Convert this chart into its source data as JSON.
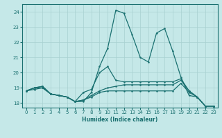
{
  "xlabel": "Humidex (Indice chaleur)",
  "xlim": [
    -0.5,
    23.5
  ],
  "ylim": [
    17.7,
    24.5
  ],
  "yticks": [
    18,
    19,
    20,
    21,
    22,
    23,
    24
  ],
  "xticks": [
    0,
    1,
    2,
    3,
    4,
    5,
    6,
    7,
    8,
    9,
    10,
    11,
    12,
    13,
    14,
    15,
    16,
    17,
    18,
    19,
    20,
    21,
    22,
    23
  ],
  "bg_color": "#c5e8e8",
  "line_color": "#1a7070",
  "grid_color": "#a8d0d0",
  "lines": [
    {
      "x": [
        0,
        1,
        2,
        3,
        4,
        5,
        6,
        7,
        8,
        9,
        10,
        11,
        12,
        13,
        14,
        15,
        16,
        17,
        18,
        19,
        20,
        21,
        22,
        23
      ],
      "y": [
        18.8,
        19.0,
        19.1,
        18.6,
        18.5,
        18.4,
        18.1,
        18.1,
        18.7,
        20.4,
        21.6,
        24.1,
        23.9,
        22.5,
        21.0,
        20.7,
        22.6,
        22.9,
        21.4,
        19.7,
        18.5,
        18.4,
        17.8,
        17.8
      ]
    },
    {
      "x": [
        0,
        1,
        2,
        3,
        4,
        5,
        6,
        7,
        8,
        9,
        10,
        11,
        12,
        13,
        14,
        15,
        16,
        17,
        18,
        19,
        20,
        21,
        22,
        23
      ],
      "y": [
        18.8,
        19.0,
        19.1,
        18.6,
        18.5,
        18.4,
        18.1,
        18.7,
        18.9,
        20.0,
        20.4,
        19.5,
        19.4,
        19.4,
        19.4,
        19.4,
        19.4,
        19.4,
        19.4,
        19.6,
        18.8,
        18.4,
        17.8,
        17.8
      ]
    },
    {
      "x": [
        0,
        1,
        2,
        3,
        4,
        5,
        6,
        7,
        8,
        9,
        10,
        11,
        12,
        13,
        14,
        15,
        16,
        17,
        18,
        19,
        20,
        21,
        22,
        23
      ],
      "y": [
        18.8,
        19.0,
        19.0,
        18.6,
        18.5,
        18.4,
        18.1,
        18.2,
        18.5,
        18.8,
        19.0,
        19.1,
        19.2,
        19.2,
        19.2,
        19.2,
        19.2,
        19.2,
        19.2,
        19.5,
        18.8,
        18.4,
        17.8,
        17.8
      ]
    },
    {
      "x": [
        0,
        1,
        2,
        3,
        4,
        5,
        6,
        7,
        8,
        9,
        10,
        11,
        12,
        13,
        14,
        15,
        16,
        17,
        18,
        19,
        20,
        21,
        22,
        23
      ],
      "y": [
        18.8,
        18.9,
        19.0,
        18.6,
        18.5,
        18.4,
        18.1,
        18.2,
        18.4,
        18.7,
        18.8,
        18.8,
        18.8,
        18.8,
        18.8,
        18.8,
        18.8,
        18.8,
        18.8,
        19.3,
        18.7,
        18.4,
        17.8,
        17.8
      ]
    }
  ]
}
